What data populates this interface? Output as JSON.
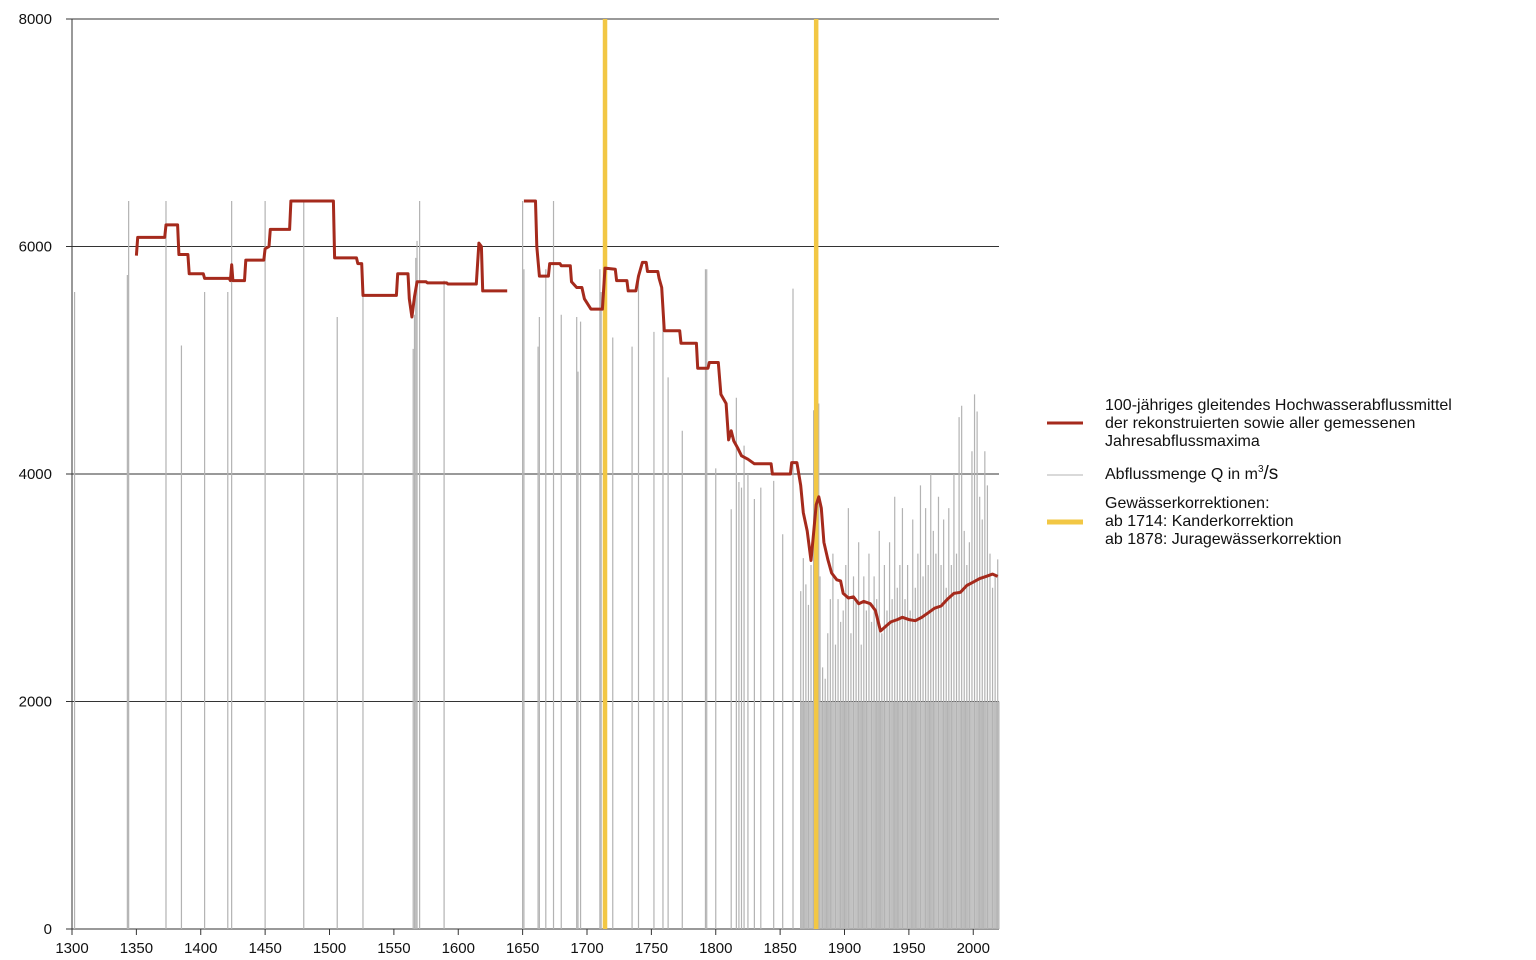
{
  "chart_data": {
    "type": "line",
    "title": "",
    "xlabel": "",
    "ylabel": "",
    "xlim": [
      1300,
      2020
    ],
    "ylim": [
      0,
      8000
    ],
    "x_ticks": [
      1300,
      1350,
      1400,
      1450,
      1500,
      1550,
      1600,
      1650,
      1700,
      1750,
      1800,
      1850,
      1900,
      1950,
      2000
    ],
    "y_ticks": [
      0,
      2000,
      4000,
      6000,
      8000
    ],
    "grid": "horizontal",
    "colors": {
      "mean_line": "#a52a1c",
      "bars": "#b3b3b3",
      "corrections": "#f2c744",
      "grid": "#333333"
    },
    "series": [
      {
        "name": "100-jähriges gleitendes Hochwasserabflussmittel der rekonstruierten sowie aller gemessenen Jahresabflussmaxima",
        "segments": [
          [
            [
              1350,
              5920
            ],
            [
              1351,
              6080
            ],
            [
              1372,
              6080
            ],
            [
              1373,
              6190
            ],
            [
              1382,
              6190
            ],
            [
              1383,
              5930
            ],
            [
              1390,
              5930
            ],
            [
              1391,
              5760
            ],
            [
              1402,
              5760
            ],
            [
              1403,
              5720
            ],
            [
              1422,
              5720
            ],
            [
              1423,
              5700
            ],
            [
              1424,
              5840
            ],
            [
              1425,
              5700
            ],
            [
              1434,
              5700
            ],
            [
              1435,
              5880
            ],
            [
              1449,
              5880
            ],
            [
              1450,
              5980
            ],
            [
              1453,
              6000
            ],
            [
              1454,
              6150
            ],
            [
              1469,
              6150
            ],
            [
              1470,
              6400
            ],
            [
              1503,
              6400
            ],
            [
              1504,
              5900
            ],
            [
              1521,
              5900
            ],
            [
              1522,
              5850
            ],
            [
              1525,
              5850
            ],
            [
              1526,
              5570
            ],
            [
              1552,
              5570
            ],
            [
              1553,
              5760
            ],
            [
              1561,
              5760
            ],
            [
              1562,
              5540
            ],
            [
              1564,
              5380
            ],
            [
              1566,
              5560
            ],
            [
              1568,
              5690
            ],
            [
              1575,
              5690
            ],
            [
              1576,
              5680
            ],
            [
              1591,
              5680
            ],
            [
              1592,
              5670
            ],
            [
              1614,
              5670
            ],
            [
              1616,
              6030
            ],
            [
              1618,
              6000
            ],
            [
              1619,
              5610
            ],
            [
              1638,
              5610
            ]
          ],
          [
            [
              1651,
              6400
            ],
            [
              1660,
              6400
            ],
            [
              1661,
              6000
            ],
            [
              1663,
              5740
            ],
            [
              1670,
              5740
            ],
            [
              1671,
              5850
            ],
            [
              1679,
              5850
            ],
            [
              1680,
              5830
            ],
            [
              1687,
              5830
            ],
            [
              1688,
              5690
            ],
            [
              1692,
              5640
            ],
            [
              1696,
              5640
            ],
            [
              1698,
              5540
            ],
            [
              1703,
              5450
            ],
            [
              1712,
              5450
            ],
            [
              1714,
              5810
            ],
            [
              1722,
              5800
            ],
            [
              1723,
              5700
            ],
            [
              1731,
              5700
            ],
            [
              1732,
              5610
            ],
            [
              1738,
              5610
            ],
            [
              1740,
              5740
            ],
            [
              1743,
              5860
            ],
            [
              1746,
              5860
            ],
            [
              1747,
              5780
            ],
            [
              1755,
              5780
            ],
            [
              1756,
              5720
            ],
            [
              1758,
              5640
            ],
            [
              1760,
              5260
            ],
            [
              1772,
              5260
            ],
            [
              1773,
              5150
            ],
            [
              1785,
              5150
            ],
            [
              1786,
              4930
            ],
            [
              1794,
              4930
            ],
            [
              1795,
              4980
            ],
            [
              1802,
              4980
            ],
            [
              1804,
              4700
            ],
            [
              1808,
              4620
            ],
            [
              1810,
              4300
            ],
            [
              1812,
              4380
            ],
            [
              1814,
              4290
            ],
            [
              1817,
              4230
            ],
            [
              1820,
              4160
            ],
            [
              1825,
              4130
            ],
            [
              1830,
              4090
            ],
            [
              1843,
              4090
            ],
            [
              1844,
              4000
            ],
            [
              1858,
              4000
            ],
            [
              1859,
              4100
            ],
            [
              1863,
              4100
            ],
            [
              1866,
              3900
            ],
            [
              1868,
              3660
            ],
            [
              1871,
              3500
            ],
            [
              1874,
              3240
            ],
            [
              1876,
              3480
            ],
            [
              1878,
              3730
            ],
            [
              1880,
              3800
            ],
            [
              1882,
              3700
            ],
            [
              1884,
              3400
            ],
            [
              1887,
              3250
            ],
            [
              1890,
              3130
            ],
            [
              1894,
              3070
            ],
            [
              1897,
              3060
            ],
            [
              1899,
              2950
            ],
            [
              1903,
              2910
            ],
            [
              1907,
              2920
            ],
            [
              1911,
              2860
            ],
            [
              1915,
              2880
            ],
            [
              1920,
              2860
            ],
            [
              1924,
              2800
            ],
            [
              1928,
              2620
            ],
            [
              1932,
              2660
            ],
            [
              1936,
              2700
            ],
            [
              1941,
              2720
            ],
            [
              1945,
              2740
            ],
            [
              1950,
              2720
            ],
            [
              1955,
              2710
            ],
            [
              1960,
              2740
            ],
            [
              1965,
              2780
            ],
            [
              1970,
              2820
            ],
            [
              1975,
              2840
            ],
            [
              1980,
              2900
            ],
            [
              1985,
              2950
            ],
            [
              1990,
              2960
            ],
            [
              1995,
              3020
            ],
            [
              2000,
              3050
            ],
            [
              2005,
              3080
            ],
            [
              2010,
              3100
            ],
            [
              2015,
              3120
            ],
            [
              2019,
              3100
            ]
          ]
        ]
      },
      {
        "name": "Abflussmenge Q in m3/s",
        "type": "bar",
        "bars": [
          [
            1302,
            5600
          ],
          [
            1343,
            5750
          ],
          [
            1344,
            6400
          ],
          [
            1373,
            6400
          ],
          [
            1385,
            5130
          ],
          [
            1403,
            5600
          ],
          [
            1421,
            5600
          ],
          [
            1424,
            6400
          ],
          [
            1450,
            6400
          ],
          [
            1480,
            6400
          ],
          [
            1506,
            5380
          ],
          [
            1526,
            5700
          ],
          [
            1565,
            5100
          ],
          [
            1566,
            5400
          ],
          [
            1567,
            5900
          ],
          [
            1568,
            6050
          ],
          [
            1570,
            6400
          ],
          [
            1589,
            5700
          ],
          [
            1650,
            6400
          ],
          [
            1651,
            5800
          ],
          [
            1662,
            5120
          ],
          [
            1663,
            5380
          ],
          [
            1668,
            5800
          ],
          [
            1674,
            6400
          ],
          [
            1680,
            5400
          ],
          [
            1692,
            5380
          ],
          [
            1693,
            4900
          ],
          [
            1695,
            5340
          ],
          [
            1710,
            5800
          ],
          [
            1711,
            5600
          ],
          [
            1720,
            5200
          ],
          [
            1735,
            5120
          ],
          [
            1740,
            5700
          ],
          [
            1752,
            5250
          ],
          [
            1759,
            5400
          ],
          [
            1763,
            4850
          ],
          [
            1774,
            4380
          ],
          [
            1792,
            5800
          ],
          [
            1793,
            5800
          ],
          [
            1800,
            4050
          ],
          [
            1812,
            3690
          ],
          [
            1816,
            4670
          ],
          [
            1818,
            3930
          ],
          [
            1820,
            3880
          ],
          [
            1822,
            4250
          ],
          [
            1825,
            4000
          ],
          [
            1830,
            3780
          ],
          [
            1835,
            3880
          ],
          [
            1845,
            3940
          ],
          [
            1852,
            3470
          ],
          [
            1860,
            5630
          ],
          [
            1866,
            2970
          ],
          [
            1868,
            3260
          ],
          [
            1870,
            3030
          ],
          [
            1872,
            2850
          ],
          [
            1874,
            3200
          ],
          [
            1876,
            4560
          ],
          [
            1877,
            5700
          ],
          [
            1878,
            5900
          ],
          [
            1879,
            3400
          ],
          [
            1880,
            4620
          ],
          [
            1881,
            3100
          ],
          [
            1883,
            2300
          ],
          [
            1885,
            2200
          ],
          [
            1887,
            2600
          ],
          [
            1889,
            2900
          ],
          [
            1891,
            3300
          ],
          [
            1893,
            2500
          ],
          [
            1895,
            2900
          ],
          [
            1897,
            2700
          ],
          [
            1899,
            2800
          ],
          [
            1901,
            3200
          ],
          [
            1903,
            3700
          ],
          [
            1905,
            2600
          ],
          [
            1907,
            3100
          ],
          [
            1909,
            2900
          ],
          [
            1911,
            3400
          ],
          [
            1913,
            2500
          ],
          [
            1915,
            3100
          ],
          [
            1917,
            2800
          ],
          [
            1919,
            3300
          ],
          [
            1921,
            2700
          ],
          [
            1923,
            3100
          ],
          [
            1925,
            2900
          ],
          [
            1927,
            3500
          ],
          [
            1929,
            2600
          ],
          [
            1931,
            3200
          ],
          [
            1933,
            2800
          ],
          [
            1935,
            3400
          ],
          [
            1937,
            2900
          ],
          [
            1939,
            3800
          ],
          [
            1941,
            3000
          ],
          [
            1943,
            3200
          ],
          [
            1945,
            3700
          ],
          [
            1947,
            2900
          ],
          [
            1949,
            3200
          ],
          [
            1951,
            2800
          ],
          [
            1953,
            3600
          ],
          [
            1955,
            3000
          ],
          [
            1957,
            3300
          ],
          [
            1959,
            3900
          ],
          [
            1961,
            3100
          ],
          [
            1963,
            3700
          ],
          [
            1965,
            3200
          ],
          [
            1967,
            4000
          ],
          [
            1969,
            3500
          ],
          [
            1971,
            3300
          ],
          [
            1973,
            3800
          ],
          [
            1975,
            3200
          ],
          [
            1977,
            3600
          ],
          [
            1979,
            3000
          ],
          [
            1981,
            3700
          ],
          [
            1983,
            3200
          ],
          [
            1985,
            4000
          ],
          [
            1987,
            3300
          ],
          [
            1989,
            4500
          ],
          [
            1991,
            4600
          ],
          [
            1993,
            3500
          ],
          [
            1995,
            3200
          ],
          [
            1997,
            3400
          ],
          [
            1999,
            4200
          ],
          [
            2001,
            4700
          ],
          [
            2003,
            4550
          ],
          [
            2005,
            3800
          ],
          [
            2007,
            3600
          ],
          [
            2009,
            4200
          ],
          [
            2011,
            3900
          ],
          [
            2013,
            3300
          ],
          [
            2015,
            3000
          ],
          [
            2017,
            3100
          ],
          [
            2019,
            3250
          ]
        ],
        "base_fill_1866_to_2020": 2000
      }
    ],
    "corrections": [
      1714,
      1878
    ]
  },
  "legend": {
    "entry1": "100-jähriges gleitendes Hochwasserabflussmittel\n der rekonstruierten sowie aller gemessenen\n Jahresabflussmaxima",
    "entry2_prefix": "Abflussmenge Q in m",
    "entry2_sup": "3",
    "entry2_suffix": "/s",
    "entry3": "Gewässerkorrektionen:\n ab 1714: Kanderkorrektion\n ab 1878: Juragewässerkorrektion"
  }
}
